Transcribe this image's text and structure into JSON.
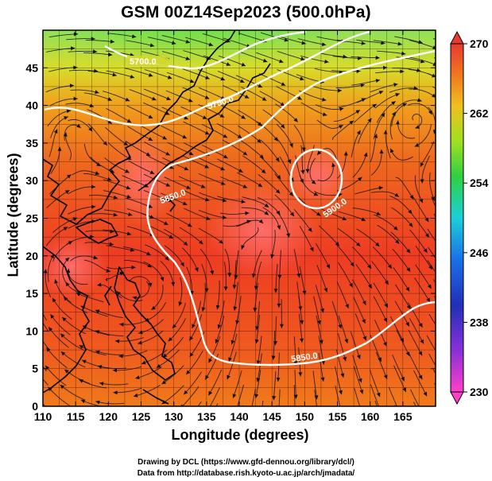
{
  "title": "GSM 00Z14Sep2023 (500.0hPa)",
  "x_axis": {
    "label": "Longitude (degrees)",
    "range": [
      110,
      170
    ],
    "ticks": [
      "110",
      "115",
      "120",
      "125",
      "130",
      "135",
      "140",
      "145",
      "150",
      "155",
      "160",
      "165"
    ]
  },
  "y_axis": {
    "label": "Latitude  (degrees)",
    "range": [
      0,
      50
    ],
    "ticks": [
      "0",
      "5",
      "10",
      "15",
      "20",
      "25",
      "30",
      "35",
      "40",
      "45"
    ]
  },
  "colorbar": {
    "range": [
      230,
      270
    ],
    "tick_labels": [
      "230",
      "238",
      "246",
      "254",
      "262",
      "270"
    ]
  },
  "contour_labels": [
    "5700.0",
    "5750.0",
    "5850.0",
    "5900.0",
    "5850.0"
  ],
  "credits": {
    "line1": "Drawing by DCL (https://www.gfd-dennou.org/library/dcl/)",
    "line2": "Data from http://database.rish.kyoto-u.ac.jp/arch/jmadata/"
  },
  "colors": {
    "warm": "#ee3a22",
    "hot": "#ff6a6a",
    "orange": "#f08a1c",
    "green": "#44dd22",
    "contour": "#ffffff"
  }
}
